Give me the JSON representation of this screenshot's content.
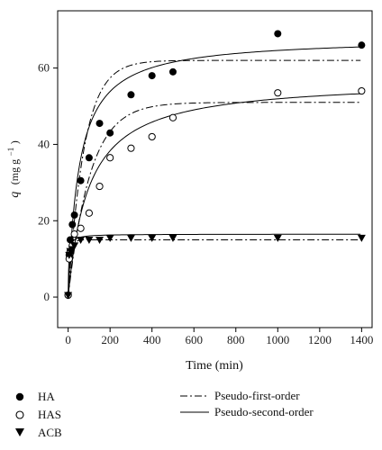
{
  "chart_data": {
    "type": "scatter",
    "xlabel": "Time (min)",
    "ylabel_q": "q",
    "ylabel_units": "(mg g",
    "ylabel_exp": "−1",
    "ylabel_close": ")",
    "xlim": [
      -50,
      1450
    ],
    "ylim": [
      -8,
      75
    ],
    "xticks": [
      0,
      200,
      400,
      600,
      800,
      1000,
      1200,
      1400
    ],
    "yticks": [
      0,
      20,
      40,
      60
    ],
    "grid": false,
    "series": [
      {
        "name": "HA",
        "marker": "filled-circle",
        "x": [
          0,
          5,
          10,
          20,
          30,
          60,
          100,
          150,
          200,
          300,
          400,
          500,
          1000,
          1400
        ],
        "y": [
          0.5,
          11,
          15,
          19,
          21.5,
          30.5,
          36.5,
          45.5,
          43,
          53,
          58,
          59,
          69,
          66
        ]
      },
      {
        "name": "HAS",
        "marker": "open-circle",
        "x": [
          0,
          5,
          10,
          20,
          30,
          60,
          100,
          150,
          200,
          300,
          400,
          500,
          1000,
          1400
        ],
        "y": [
          0.5,
          10,
          12,
          13.5,
          16.5,
          18,
          22,
          29,
          36.5,
          39,
          42,
          47,
          53.5,
          54
        ]
      },
      {
        "name": "ACB",
        "marker": "filled-triangle-down",
        "x": [
          0,
          5,
          10,
          20,
          30,
          60,
          100,
          150,
          200,
          300,
          400,
          500,
          1000,
          1400
        ],
        "y": [
          0.5,
          11,
          12,
          12.5,
          13.5,
          15,
          15,
          15,
          15.5,
          15.5,
          15.5,
          15.5,
          15.5,
          15.5
        ]
      }
    ],
    "fits": [
      {
        "name": "Pseudo-first-order",
        "style": "dash-dot",
        "models": [
          {
            "qe": 62,
            "k": 0.013
          },
          {
            "qe": 51,
            "k": 0.0095
          },
          {
            "qe": 15,
            "k": 0.09
          }
        ]
      },
      {
        "name": "Pseudo-second-order",
        "style": "solid",
        "models": [
          {
            "qe": 68,
            "k": 0.00028
          },
          {
            "qe": 57,
            "k": 0.00018
          },
          {
            "qe": 16.5,
            "k": 0.02
          }
        ]
      }
    ]
  }
}
